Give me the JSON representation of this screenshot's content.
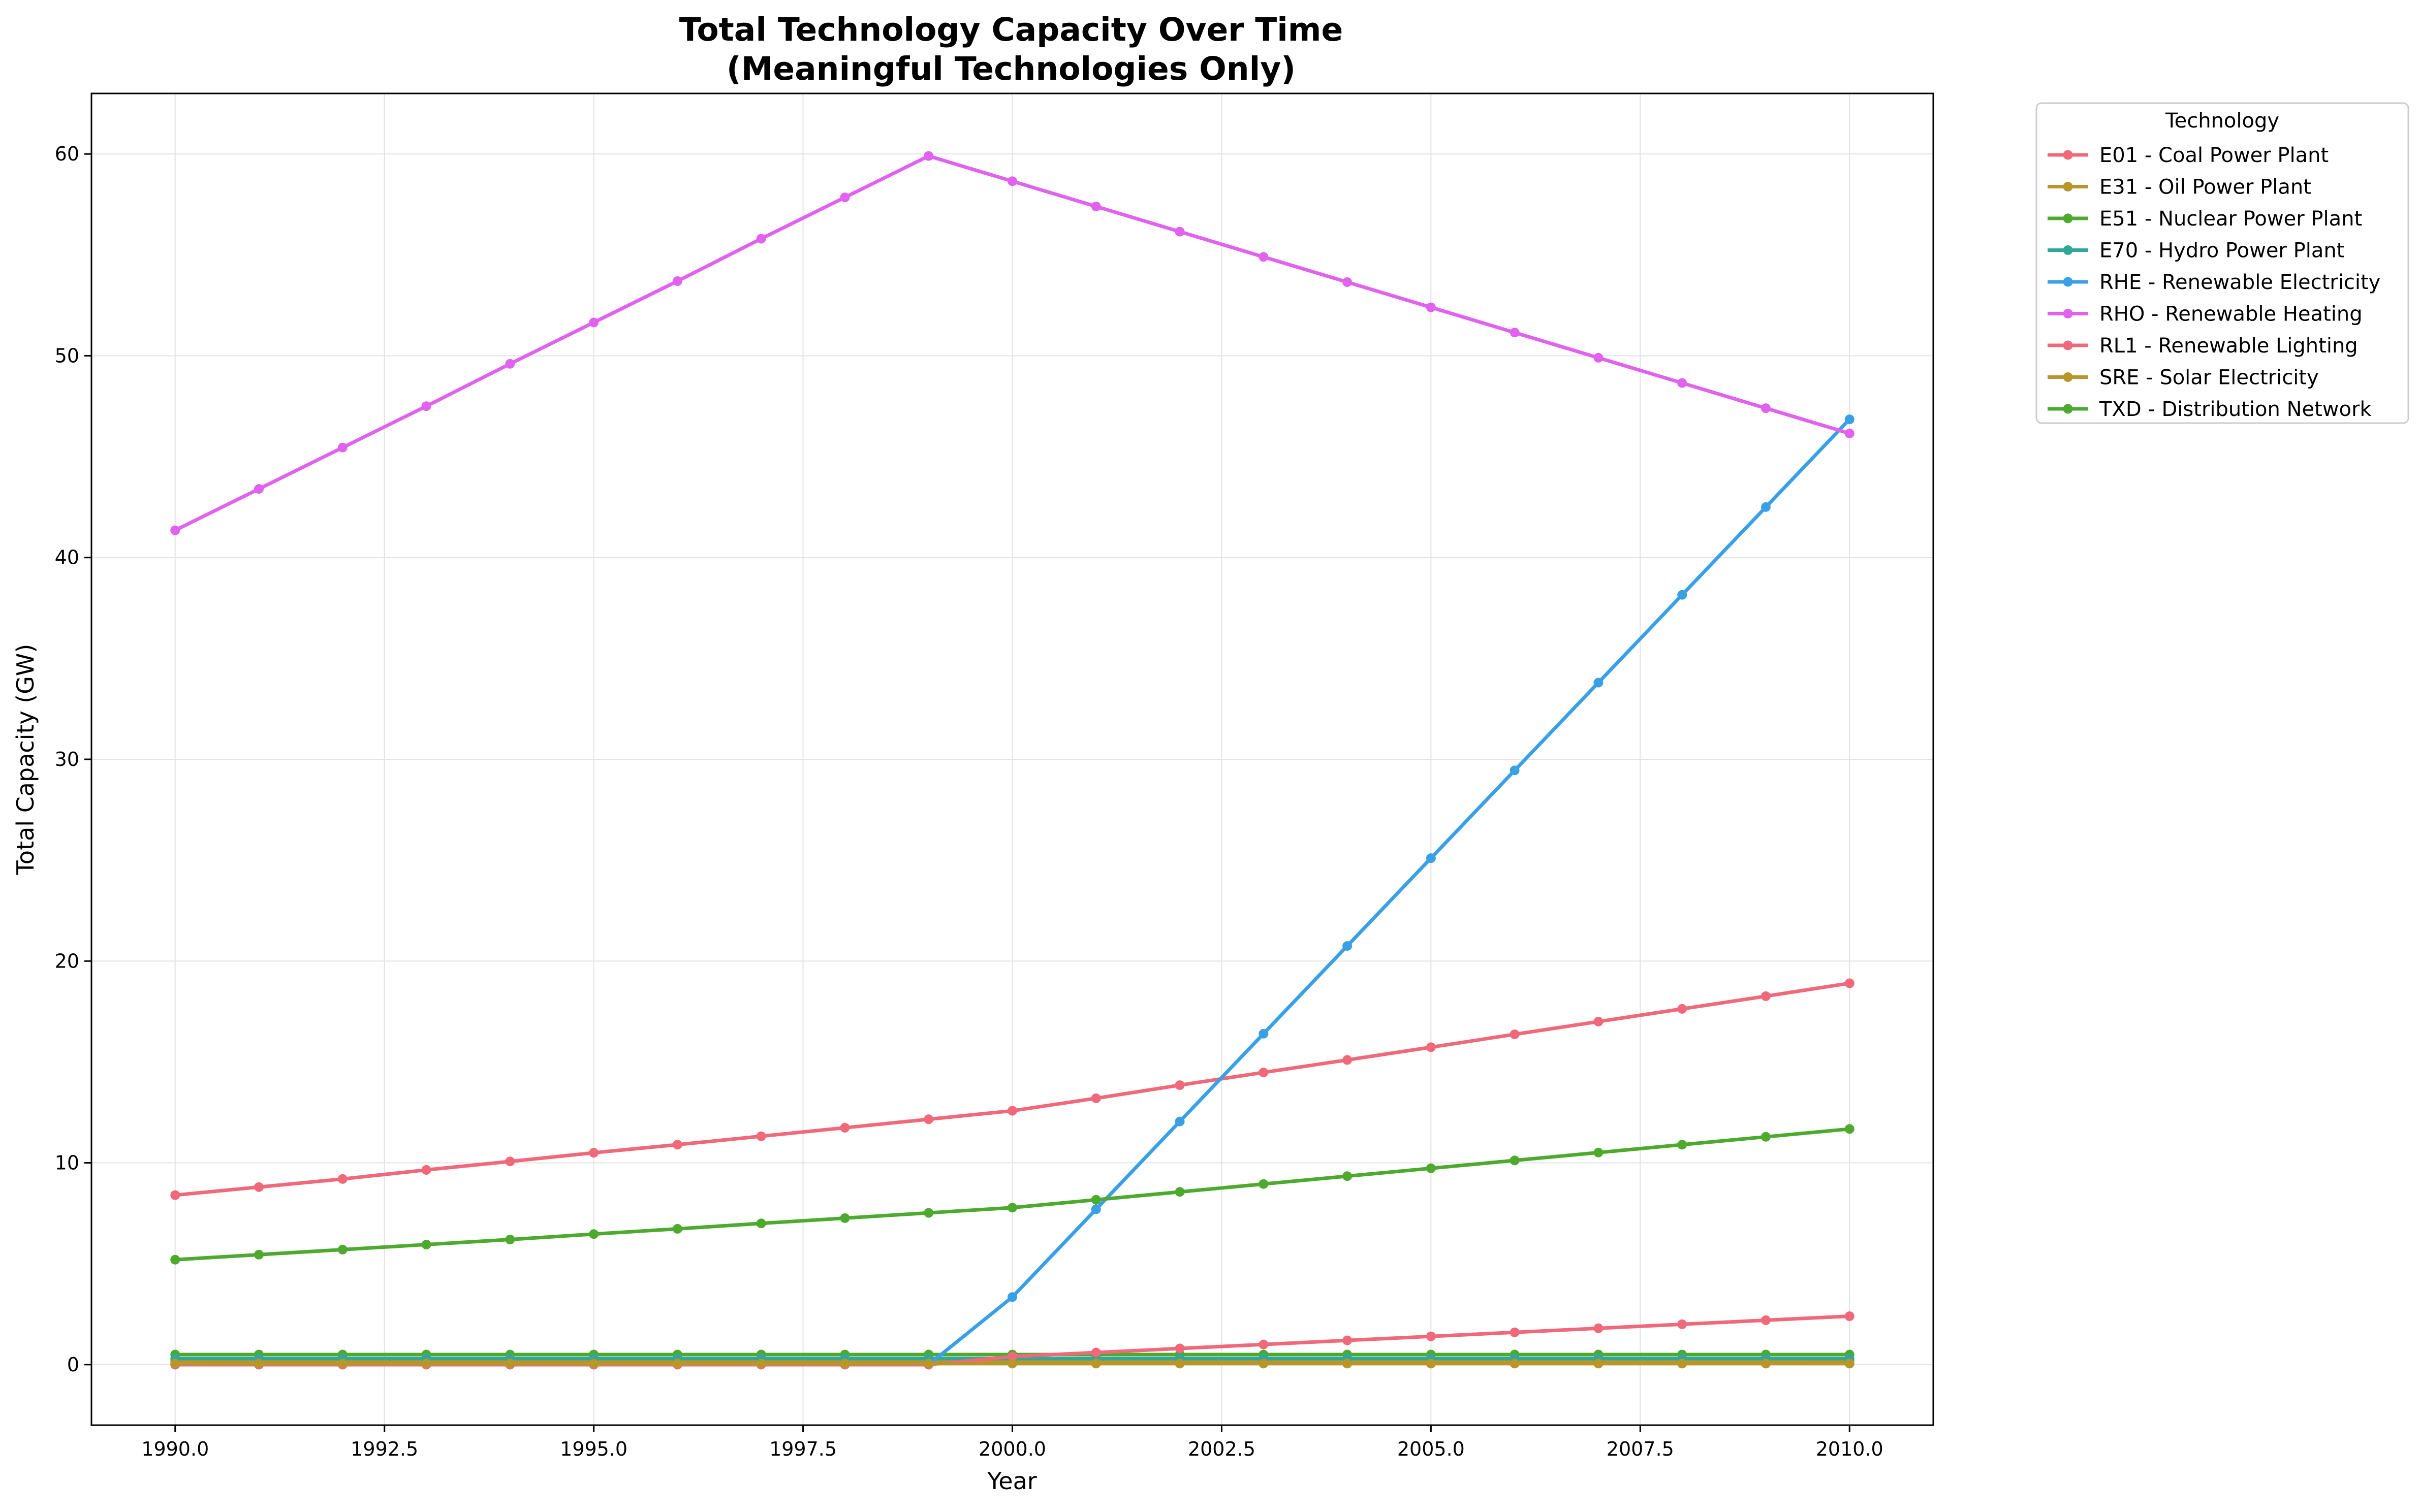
{
  "chart_data": {
    "type": "line",
    "title": [
      "Total Technology Capacity Over Time",
      "(Meaningful Technologies Only)"
    ],
    "xlabel": "Year",
    "ylabel": "Total Capacity (GW)",
    "xlim": [
      1989.0,
      2011.0
    ],
    "ylim": [
      -3.0,
      63.0
    ],
    "xticks": [
      1990.0,
      1992.5,
      1995.0,
      1997.5,
      2000.0,
      2002.5,
      2005.0,
      2007.5,
      2010.0
    ],
    "xtick_labels": [
      "1990.0",
      "1992.5",
      "1995.0",
      "1997.5",
      "2000.0",
      "2002.5",
      "2005.0",
      "2007.5",
      "2010.0"
    ],
    "yticks": [
      0,
      10,
      20,
      30,
      40,
      50,
      60
    ],
    "ytick_labels": [
      "0",
      "10",
      "20",
      "30",
      "40",
      "50",
      "60"
    ],
    "grid": true,
    "legend": {
      "title": "Technology",
      "placement": "outside-top-right"
    },
    "x": [
      1990,
      1991,
      1992,
      1993,
      1994,
      1995,
      1996,
      1997,
      1998,
      1999,
      2000,
      2001,
      2002,
      2003,
      2004,
      2005,
      2006,
      2007,
      2008,
      2009,
      2010
    ],
    "series": [
      {
        "name": "E01 - Coal Power Plant",
        "color": "#f0697b",
        "values": [
          8.4,
          8.8,
          9.2,
          9.65,
          10.07,
          10.5,
          10.9,
          11.32,
          11.74,
          12.16,
          12.58,
          13.2,
          13.85,
          14.48,
          15.1,
          15.73,
          16.37,
          17.0,
          17.63,
          18.26,
          18.9
        ]
      },
      {
        "name": "E31 - Oil Power Plant",
        "color": "#b8962a",
        "values": [
          0.2,
          0.2,
          0.2,
          0.2,
          0.2,
          0.2,
          0.2,
          0.2,
          0.2,
          0.2,
          0.2,
          0.2,
          0.2,
          0.2,
          0.2,
          0.2,
          0.2,
          0.2,
          0.2,
          0.2,
          0.2
        ]
      },
      {
        "name": "E51 - Nuclear Power Plant",
        "color": "#4daa2e",
        "values": [
          0.5,
          0.5,
          0.5,
          0.5,
          0.5,
          0.5,
          0.5,
          0.5,
          0.5,
          0.5,
          0.5,
          0.5,
          0.5,
          0.5,
          0.5,
          0.5,
          0.5,
          0.5,
          0.5,
          0.5,
          0.5
        ]
      },
      {
        "name": "E70 - Hydro Power Plant",
        "color": "#2fa89a",
        "values": [
          0.3,
          0.3,
          0.3,
          0.3,
          0.3,
          0.3,
          0.3,
          0.3,
          0.3,
          0.3,
          0.3,
          0.3,
          0.3,
          0.3,
          0.3,
          0.3,
          0.3,
          0.3,
          0.3,
          0.3,
          0.3
        ]
      },
      {
        "name": "RHE - Renewable Electricity",
        "color": "#3aa0e6",
        "values": [
          0.0,
          0.0,
          0.0,
          0.0,
          0.0,
          0.0,
          0.0,
          0.0,
          0.0,
          0.0,
          3.35,
          7.7,
          12.05,
          16.4,
          20.75,
          25.1,
          29.45,
          33.8,
          38.15,
          42.5,
          46.85
        ]
      },
      {
        "name": "RHO - Renewable Heating",
        "color": "#e162ef",
        "values": [
          41.35,
          43.4,
          45.45,
          47.5,
          49.6,
          51.65,
          53.7,
          55.8,
          57.85,
          59.9,
          58.65,
          57.4,
          56.15,
          54.9,
          53.65,
          52.4,
          51.15,
          49.9,
          48.65,
          47.4,
          46.15
        ]
      },
      {
        "name": "RL1 - Renewable Lighting",
        "color": "#f0697b",
        "values": [
          0.0,
          0.0,
          0.0,
          0.0,
          0.0,
          0.0,
          0.0,
          0.0,
          0.0,
          0.0,
          0.4,
          0.6,
          0.8,
          1.0,
          1.2,
          1.4,
          1.6,
          1.8,
          2.0,
          2.2,
          2.4
        ]
      },
      {
        "name": "SRE - Solar Electricity",
        "color": "#b8962a",
        "values": [
          0.05,
          0.05,
          0.05,
          0.05,
          0.05,
          0.05,
          0.05,
          0.05,
          0.05,
          0.05,
          0.05,
          0.05,
          0.05,
          0.05,
          0.05,
          0.05,
          0.05,
          0.05,
          0.05,
          0.05,
          0.05
        ]
      },
      {
        "name": "TXD - Distribution Network",
        "color": "#4daa2e",
        "values": [
          5.2,
          5.45,
          5.7,
          5.95,
          6.2,
          6.47,
          6.73,
          7.0,
          7.26,
          7.52,
          7.78,
          8.17,
          8.56,
          8.95,
          9.34,
          9.73,
          10.12,
          10.51,
          10.9,
          11.29,
          11.68
        ]
      }
    ]
  }
}
